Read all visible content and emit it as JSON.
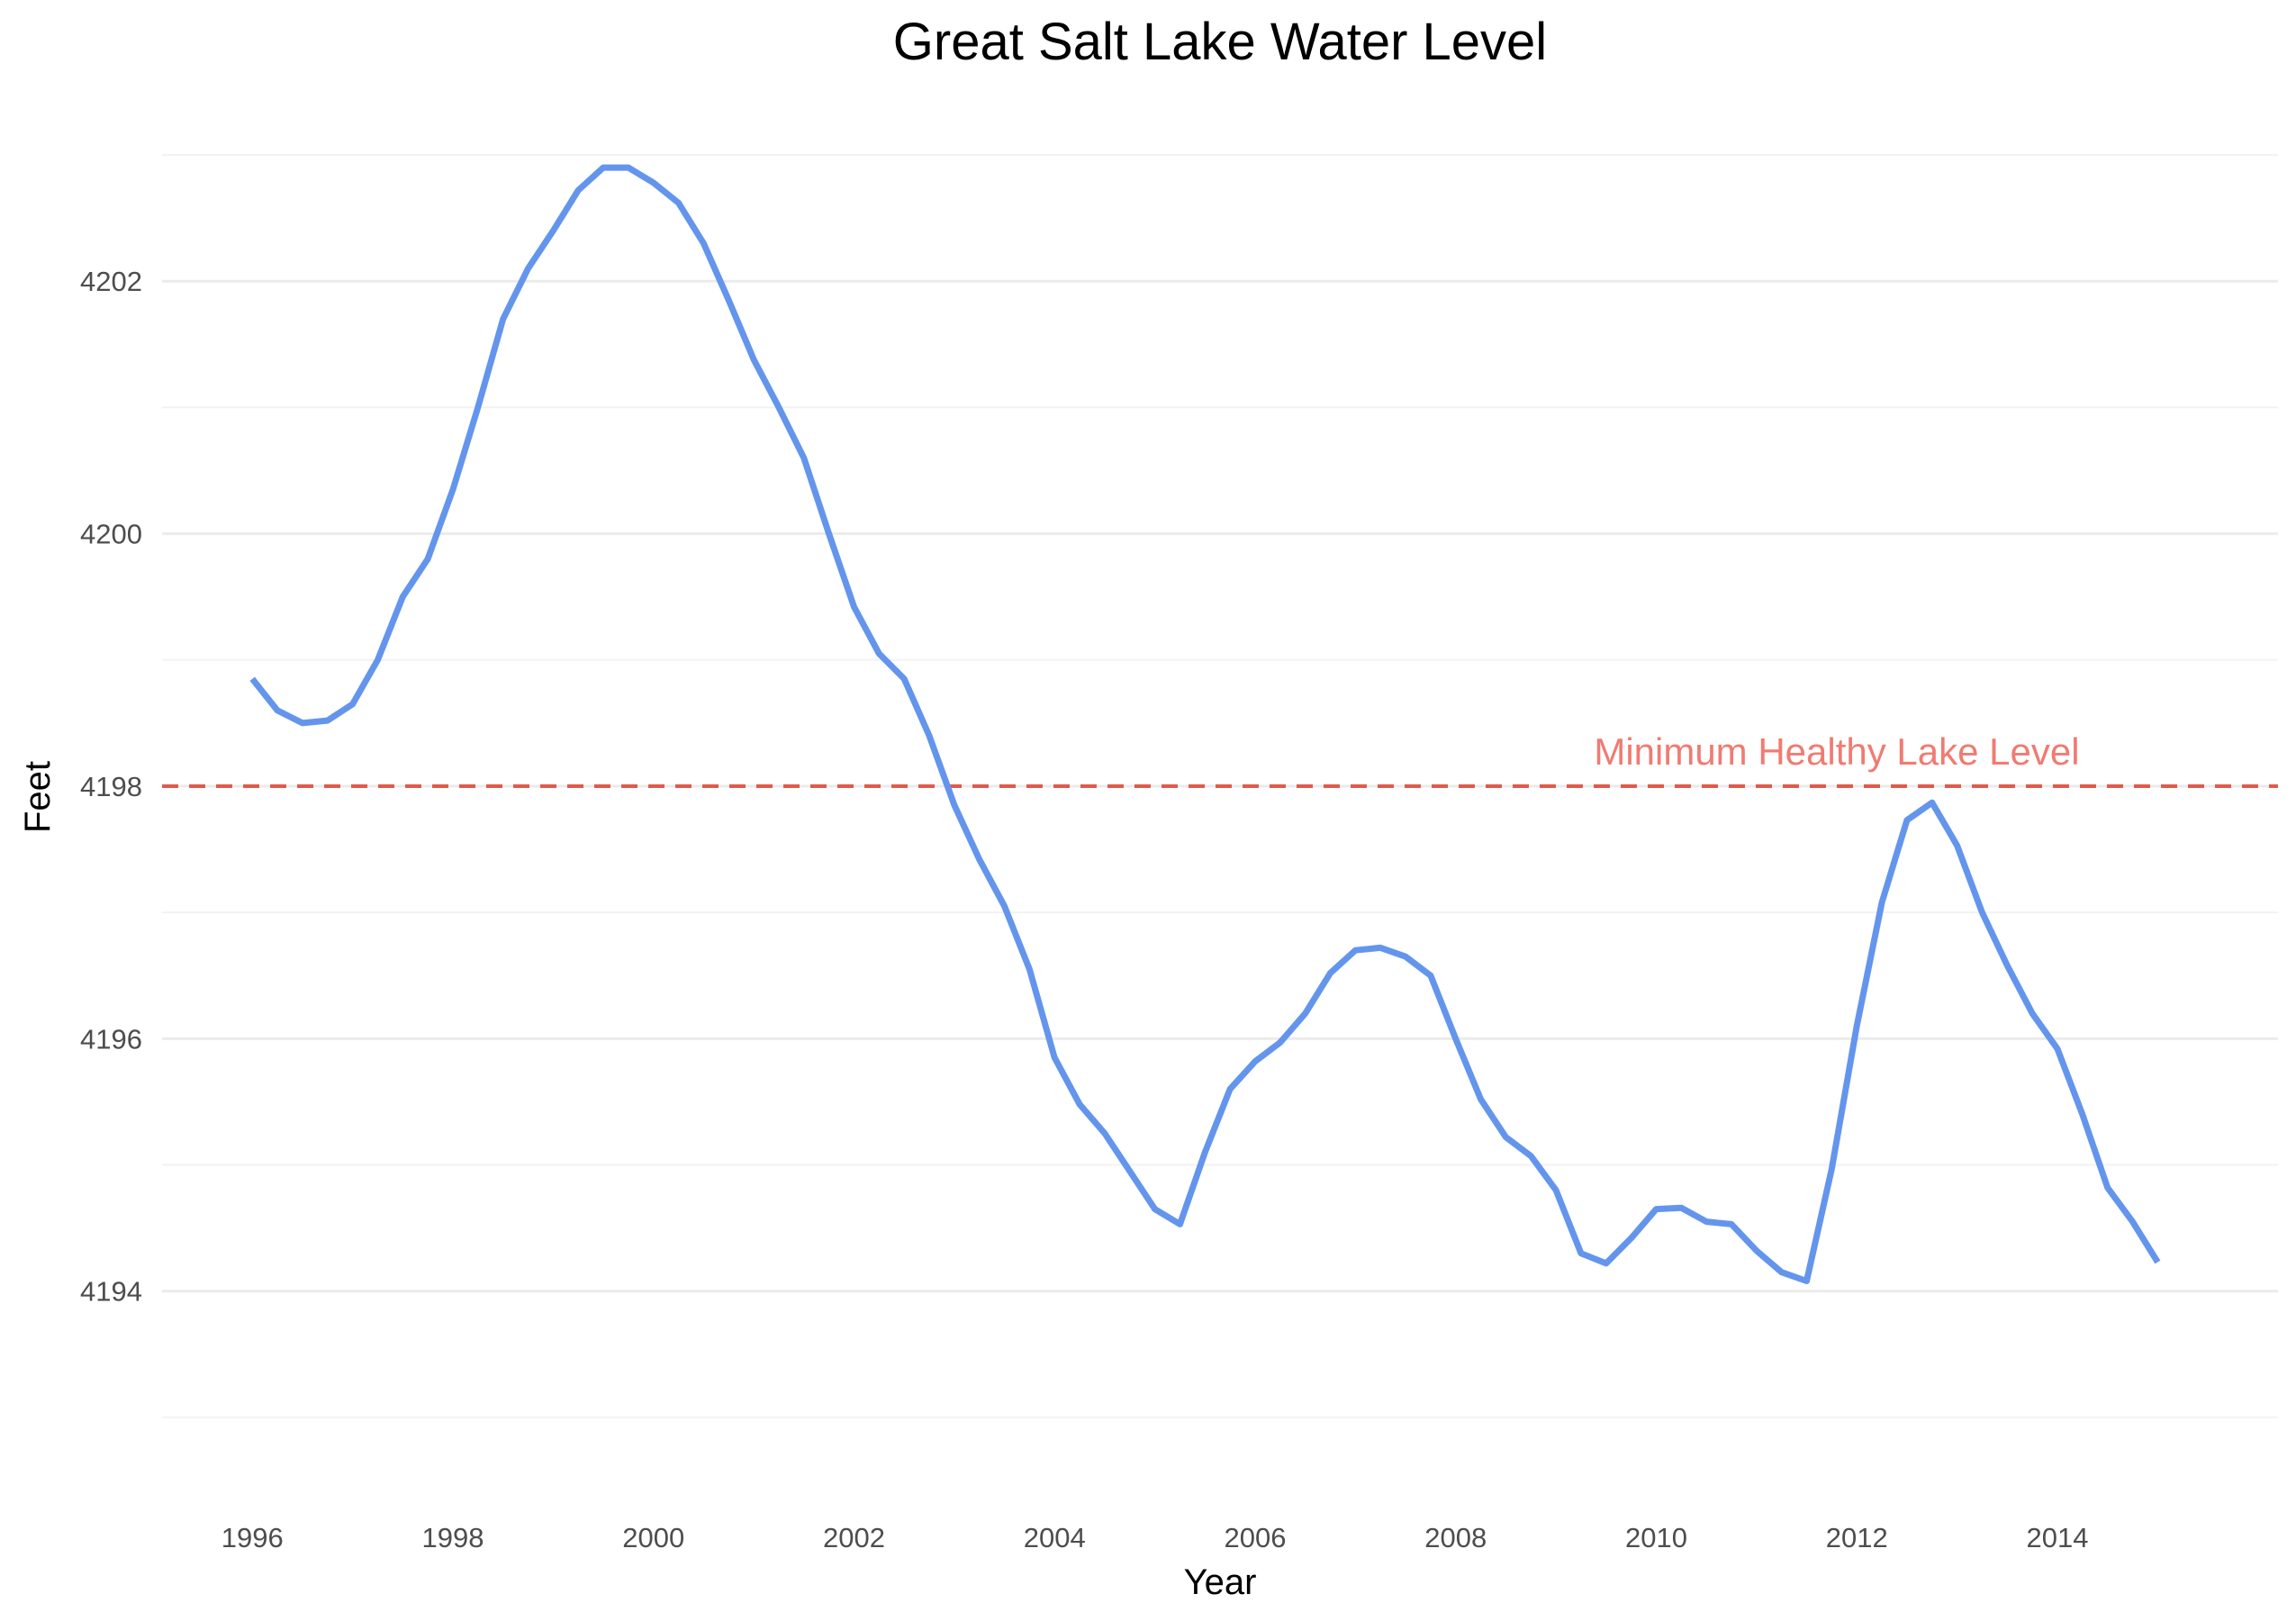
{
  "chart_data": {
    "type": "line",
    "title": "Great Salt Lake Water Level",
    "xlabel": "Year",
    "ylabel": "Feet",
    "xlim": [
      1995.1,
      2016.2
    ],
    "ylim": [
      4192.6,
      4203.3
    ],
    "x_ticks": [
      1996,
      1998,
      2000,
      2002,
      2004,
      2006,
      2008,
      2010,
      2012,
      2014
    ],
    "y_ticks": [
      4194,
      4196,
      4198,
      4200,
      4202
    ],
    "grid": true,
    "colors": {
      "line": "#6495ED",
      "reference": "#E05A4A",
      "annotation": "#F07B72"
    },
    "reference_line": {
      "y": 4198,
      "label": "Minimum Healthy Lake Level",
      "label_x": 2011.8,
      "label_y": 4198.27
    },
    "series": [
      {
        "x": [
          1996.0,
          1996.25,
          1996.5,
          1996.75,
          1997.0,
          1997.25,
          1997.5,
          1997.75,
          1998.0,
          1998.25,
          1998.5,
          1998.75,
          1999.0,
          1999.25,
          1999.5,
          1999.75,
          2000.0,
          2000.25,
          2000.5,
          2000.75,
          2001.0,
          2001.25,
          2001.5,
          2001.75,
          2002.0,
          2002.25,
          2002.5,
          2002.75,
          2003.0,
          2003.25,
          2003.5,
          2003.75,
          2004.0,
          2004.25,
          2004.5,
          2004.75,
          2005.0,
          2005.25,
          2005.5,
          2005.75,
          2006.0,
          2006.25,
          2006.5,
          2006.75,
          2007.0,
          2007.25,
          2007.5,
          2007.75,
          2008.0,
          2008.25,
          2008.5,
          2008.75,
          2009.0,
          2009.25,
          2009.5,
          2009.75,
          2010.0,
          2010.25,
          2010.5,
          2010.75,
          2011.0,
          2011.25,
          2011.5,
          2011.75,
          2012.0,
          2012.25,
          2012.5,
          2012.75,
          2013.0,
          2013.25,
          2013.5,
          2013.75,
          2014.0,
          2014.25,
          2014.5,
          2014.75,
          2015.0
        ],
        "values": [
          4198.85,
          4198.6,
          4198.5,
          4198.52,
          4198.65,
          4199.0,
          4199.5,
          4199.8,
          4200.35,
          4201.0,
          4201.7,
          4202.1,
          4202.4,
          4202.72,
          4202.9,
          4202.9,
          4202.78,
          4202.62,
          4202.3,
          4201.85,
          4201.38,
          4201.0,
          4200.6,
          4200.0,
          4199.42,
          4199.05,
          4198.85,
          4198.4,
          4197.85,
          4197.42,
          4197.05,
          4196.55,
          4195.85,
          4195.48,
          4195.25,
          4194.95,
          4194.65,
          4194.53,
          4195.1,
          4195.6,
          4195.82,
          4195.97,
          4196.2,
          4196.52,
          4196.7,
          4196.72,
          4196.65,
          4196.5,
          4196.0,
          4195.52,
          4195.22,
          4195.07,
          4194.8,
          4194.3,
          4194.22,
          4194.42,
          4194.65,
          4194.66,
          4194.55,
          4194.53,
          4194.32,
          4194.15,
          4194.08,
          4194.97,
          4196.1,
          4197.08,
          4197.73,
          4197.87,
          4197.53,
          4197.0,
          4196.58,
          4196.2,
          4195.92,
          4195.4,
          4194.82,
          4194.55,
          4194.23
        ]
      }
    ]
  }
}
